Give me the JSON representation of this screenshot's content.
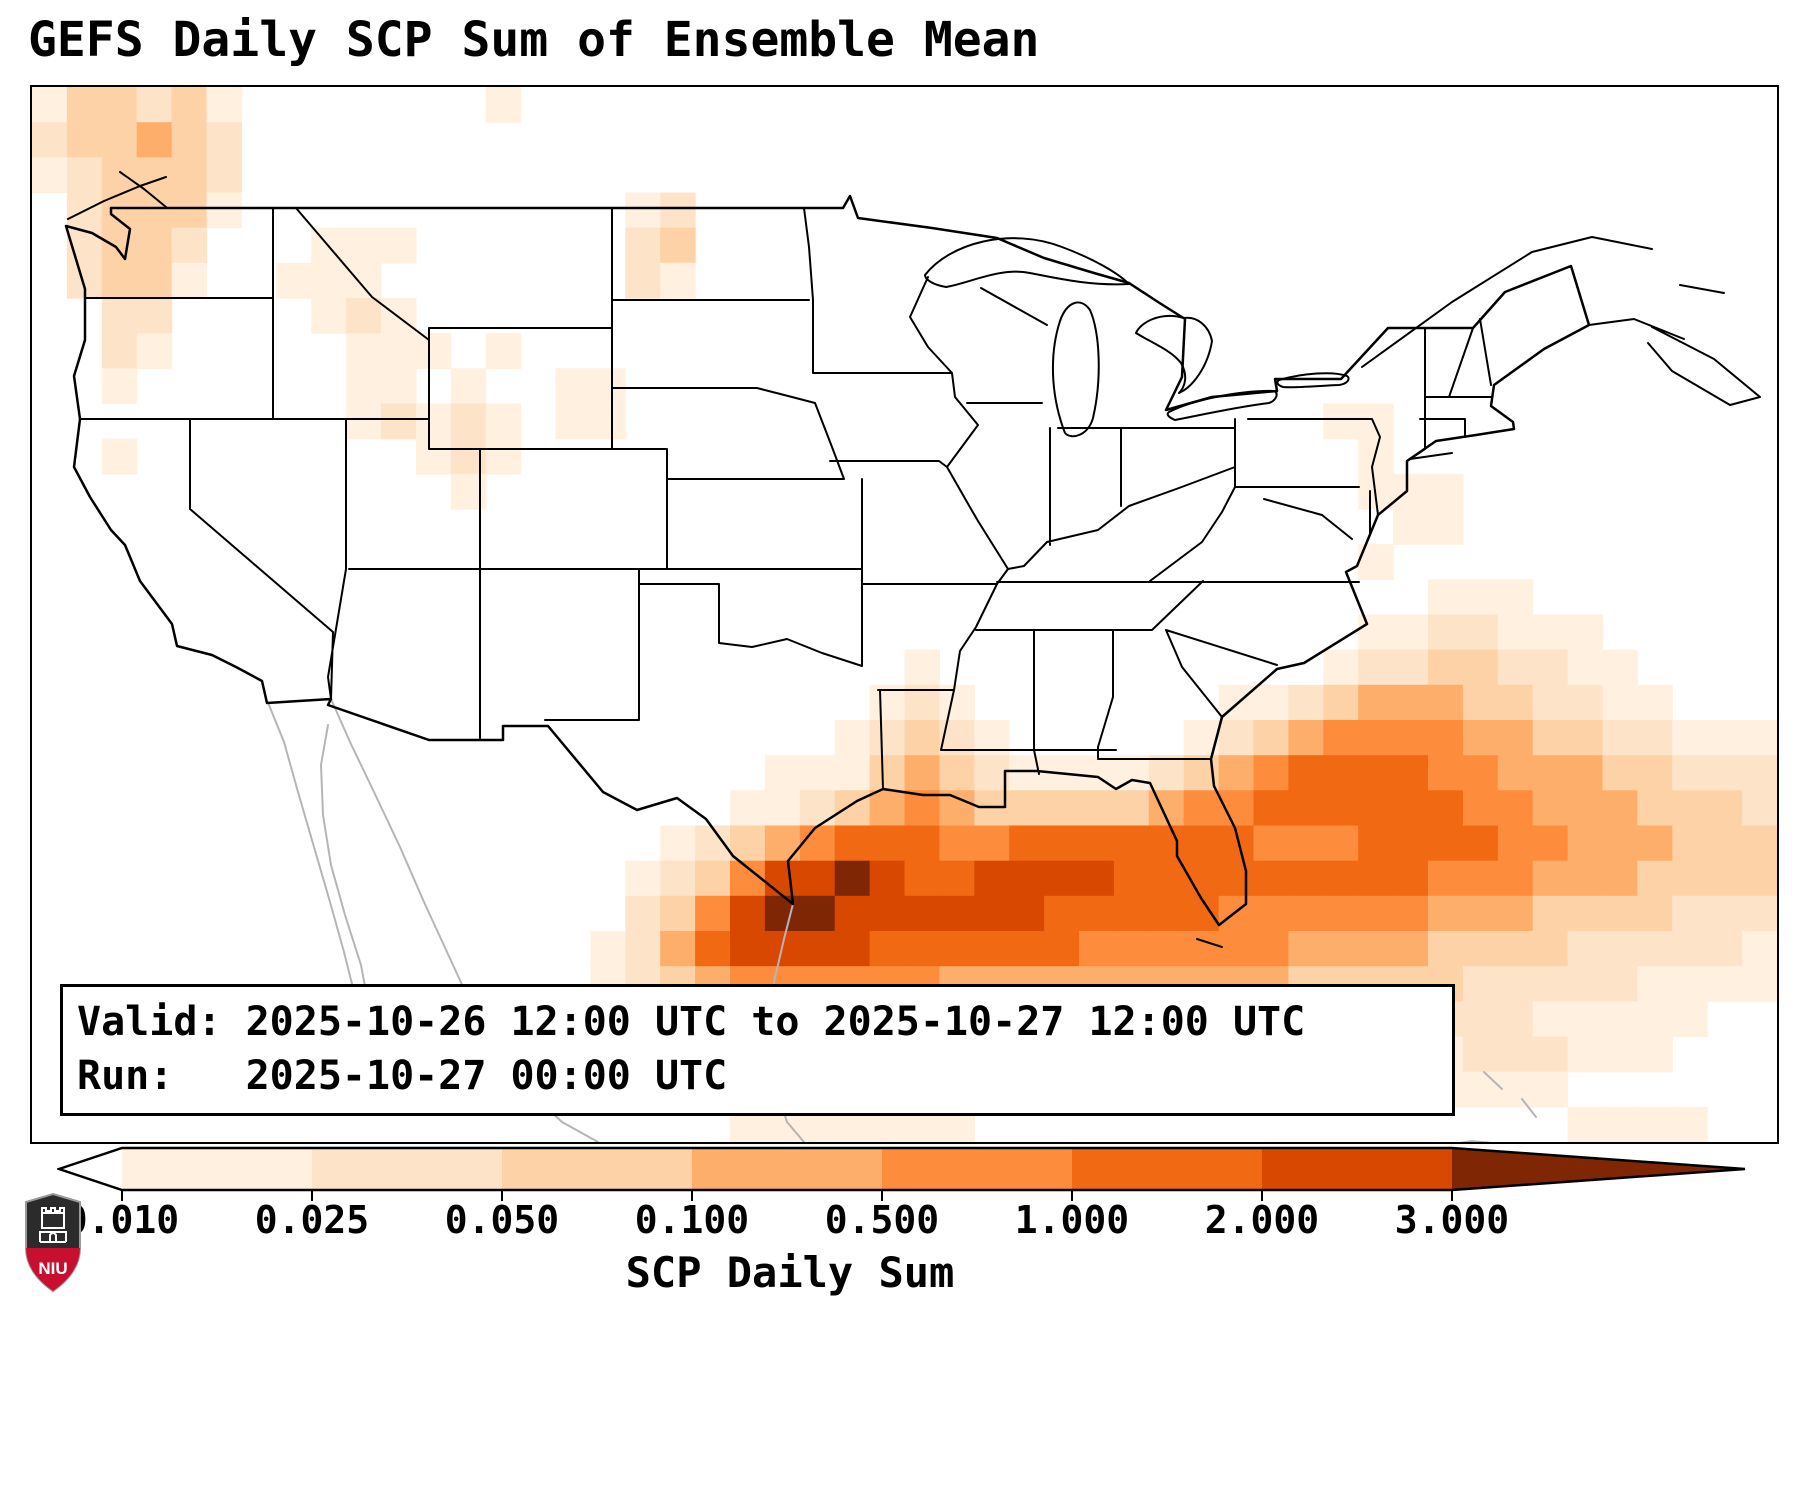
{
  "title": "GEFS Daily SCP Sum of Ensemble Mean",
  "info_box": {
    "valid_line": "Valid: 2025-10-26 12:00 UTC to 2025-10-27 12:00 UTC",
    "run_line": "Run:   2025-10-27 00:00 UTC"
  },
  "colorbar": {
    "label": "SCP Daily Sum",
    "ticks": [
      "0.010",
      "0.025",
      "0.050",
      "0.100",
      "0.500",
      "1.000",
      "2.000",
      "3.000"
    ],
    "segment_colors": [
      "#fff0e0",
      "#fde3c8",
      "#fdd2a6",
      "#fdae6b",
      "#fd8d3c",
      "#f16913",
      "#d94801"
    ],
    "under_color": "#ffffff",
    "over_color": "#7f2704",
    "outline_color": "#000000"
  },
  "logo": {
    "text": "NIU",
    "shield_color": "#2b2b2b",
    "band_color": "#c8102e"
  },
  "chart_data": {
    "type": "heatmap",
    "title": "GEFS Daily SCP Sum of Ensemble Mean",
    "colorbar_label": "SCP Daily Sum",
    "value_levels": [
      "0.010",
      "0.025",
      "0.050",
      "0.100",
      "0.500",
      "1.000",
      "2.000",
      "3.000"
    ],
    "levels": [
      {
        "code": "1",
        "min": 0.01,
        "max": 0.025,
        "color": "#fff0e0"
      },
      {
        "code": "2",
        "min": 0.025,
        "max": 0.05,
        "color": "#fde3c8"
      },
      {
        "code": "3",
        "min": 0.05,
        "max": 0.1,
        "color": "#fdd2a6"
      },
      {
        "code": "4",
        "min": 0.1,
        "max": 0.5,
        "color": "#fdae6b"
      },
      {
        "code": "5",
        "min": 0.5,
        "max": 1.0,
        "color": "#fd8d3c"
      },
      {
        "code": "6",
        "min": 1.0,
        "max": 2.0,
        "color": "#f16913"
      },
      {
        "code": "7",
        "min": 2.0,
        "max": 3.0,
        "color": "#d94801"
      },
      {
        "code": "8",
        "min": 3.0,
        "max": 99.0,
        "color": "#7f2704"
      }
    ],
    "grid": {
      "cols": 50,
      "rows": 30,
      "rows_data": [
        "13323100000001000000000000000000000000000000000000",
        "23343200000000000000000000000000000000000000000000",
        "12333200000000000000000000000000000000000000000000",
        "02333100000000000120000000000000000000000000000000",
        "02332000111000000230000000000000000000000000000000",
        "02331001110000000210000000000000000000000000000000",
        "00220000121000000000000000000000000000000000000000",
        "00210000011101000000000000000000000000000000000000",
        "00100000011010011000000000000000000000000000000000",
        "00000000012121011000000000000000000001100000000000",
        "00100000000121000000000000000000000000100000000000",
        "00000000000010000000000000000000000000111000000000",
        "00000000000000000000000000000000000000011000000000",
        "00000000000000000000000000000000000000100000000000",
        "00000000000000000000000000000000000000001110000000",
        "00000000000000000000000000000000000000112211100000",
        "00000000000000000000000001000000000001223322110000",
        "00000000000000000000000012100000001123444332211000",
        "00000000000000000000000123210000012345555443322111",
        "00000000000000000000011134321111234566665544433222",
        "00000000000000000000112345433333455666666554443332",
        "00000000000000000012345666556666666555666655444333",
        "00000000000000000123577876677776666666665554443333",
        "00000000000000000235788777777666665555554443333222",
        "00000000000000001246777766666655555544443333222221",
        "00000000000000001234555555444444444433333222221111",
        "00000000000000000123344444333333333322222221111100",
        "00000000000000000012233333222222222221111222111000",
        "00000000000000000001122222111111111110011111000000",
        "00000000000000000000111111100000000000000000111100"
      ]
    }
  }
}
